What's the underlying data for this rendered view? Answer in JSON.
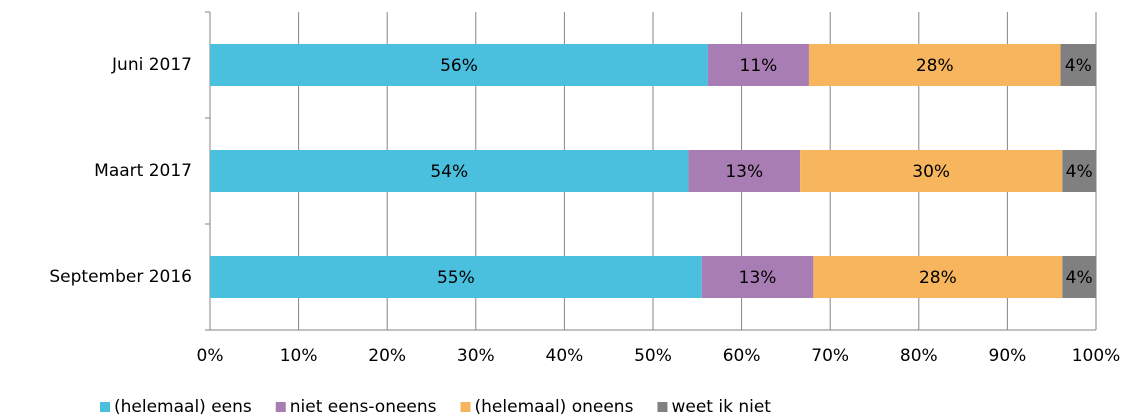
{
  "chart_data": {
    "type": "stacked-barh",
    "categories": [
      "Juni 2017",
      "Maart 2017",
      "September 2016"
    ],
    "series": [
      {
        "name": "(helemaal) eens",
        "color": "#4bc0de",
        "values": [
          56.2,
          54.0,
          55.5
        ],
        "value_labels": [
          "56%",
          "54%",
          "55%"
        ]
      },
      {
        "name": "niet eens-oneens",
        "color": "#a87db3",
        "values": [
          11.4,
          12.6,
          12.6
        ],
        "value_labels": [
          "11%",
          "13%",
          "13%"
        ]
      },
      {
        "name": "(helemaal) oneens",
        "color": "#f7b55e",
        "values": [
          28.4,
          29.6,
          28.1
        ],
        "value_labels": [
          "28%",
          "30%",
          "28%"
        ]
      },
      {
        "name": "weet ik niet",
        "color": "#808080",
        "values": [
          4.0,
          3.8,
          3.8
        ],
        "value_labels": [
          "4%",
          "4%",
          "4%"
        ]
      }
    ],
    "xlim": [
      0,
      100
    ],
    "xticks": [
      {
        "value": 0,
        "label": "0%"
      },
      {
        "value": 10,
        "label": "10%"
      },
      {
        "value": 20,
        "label": "20%"
      },
      {
        "value": 30,
        "label": "30%"
      },
      {
        "value": 40,
        "label": "40%"
      },
      {
        "value": 50,
        "label": "50%"
      },
      {
        "value": 60,
        "label": "60%"
      },
      {
        "value": 70,
        "label": "70%"
      },
      {
        "value": 80,
        "label": "80%"
      },
      {
        "value": 90,
        "label": "90%"
      },
      {
        "value": 100,
        "label": "100%"
      }
    ],
    "grid": true,
    "legend": "bottom"
  }
}
